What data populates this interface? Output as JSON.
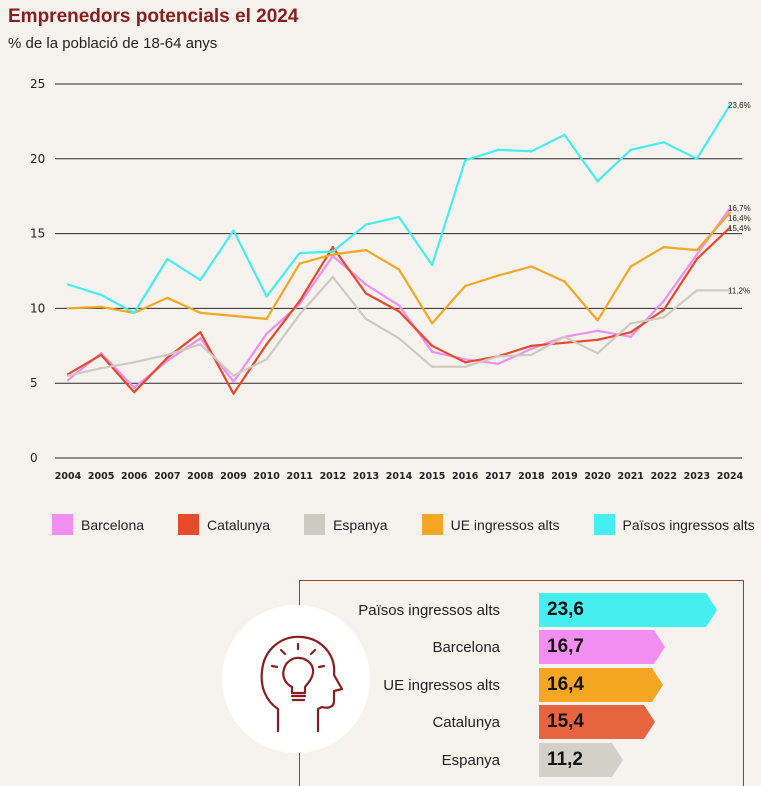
{
  "header": {
    "title": "Emprenedors potencials el 2024",
    "subtitle": "% de la població de 18-64 anys"
  },
  "chart_data": {
    "type": "line",
    "x": [
      "2004",
      "2005",
      "2006",
      "2007",
      "2008",
      "2009",
      "2010",
      "2011",
      "2012",
      "2013",
      "2014",
      "2015",
      "2016",
      "2017",
      "2018",
      "2019",
      "2020",
      "2021",
      "2022",
      "2023",
      "2024"
    ],
    "yticks": [
      0,
      5,
      10,
      15,
      20,
      25
    ],
    "ylim": [
      0,
      25
    ],
    "grid": true,
    "legend_position": "bottom",
    "series": [
      {
        "name": "Barcelona",
        "color": "#f28ef2",
        "values": [
          5.2,
          7.0,
          4.7,
          6.5,
          8.0,
          5.1,
          8.3,
          10.3,
          13.5,
          11.6,
          10.2,
          7.1,
          6.6,
          6.3,
          7.3,
          8.1,
          8.5,
          8.1,
          10.5,
          13.6,
          16.7
        ],
        "end_label": "16,7%"
      },
      {
        "name": "Catalunya",
        "color": "#e8492a",
        "values": [
          5.6,
          6.9,
          4.4,
          6.7,
          8.4,
          4.3,
          7.6,
          10.5,
          14.1,
          11.0,
          9.8,
          7.5,
          6.4,
          6.8,
          7.5,
          7.7,
          7.9,
          8.4,
          9.9,
          13.3,
          15.4
        ],
        "end_label": "15,4%"
      },
      {
        "name": "Espanya",
        "color": "#cdcac1",
        "values": [
          5.5,
          6.0,
          6.4,
          6.9,
          7.6,
          5.5,
          6.6,
          9.6,
          12.1,
          9.3,
          8.0,
          6.1,
          6.1,
          6.8,
          6.9,
          8.1,
          7.0,
          9.0,
          9.4,
          11.2,
          11.2
        ],
        "end_label": "11,2%"
      },
      {
        "name": "UE ingressos alts",
        "color": "#f5a623",
        "values": [
          10.0,
          10.1,
          9.7,
          10.7,
          9.7,
          9.5,
          9.3,
          13.0,
          13.6,
          13.9,
          12.6,
          9.0,
          11.5,
          12.2,
          12.8,
          11.8,
          9.2,
          12.8,
          14.1,
          13.9,
          16.4
        ],
        "end_label": "16,4%"
      },
      {
        "name": "Països ingressos alts",
        "color": "#45eef0",
        "values": [
          11.6,
          10.9,
          9.7,
          13.3,
          11.9,
          15.2,
          10.8,
          13.7,
          13.8,
          15.6,
          16.1,
          12.9,
          19.9,
          20.6,
          20.5,
          21.6,
          18.5,
          20.6,
          21.1,
          20.0,
          23.6
        ],
        "end_label": "23,6%"
      }
    ]
  },
  "legend": {
    "items": [
      {
        "label": "Barcelona",
        "color": "#f28ef2"
      },
      {
        "label": "Catalunya",
        "color": "#e8492a"
      },
      {
        "label": "Espanya",
        "color": "#cdcac1"
      },
      {
        "label": "UE ingressos alts",
        "color": "#f5a623"
      },
      {
        "label": "Països ingressos alts",
        "color": "#45eef0"
      }
    ]
  },
  "ranking": {
    "icon": "head-lightbulb-icon",
    "items": [
      {
        "label": "Països ingressos alts",
        "value": "23,6",
        "num": 23.6,
        "color": "#45eef0"
      },
      {
        "label": "Barcelona",
        "value": "16,7",
        "num": 16.7,
        "color": "#f28ef2"
      },
      {
        "label": "UE ingressos alts",
        "value": "16,4",
        "num": 16.4,
        "color": "#f5a623"
      },
      {
        "label": "Catalunya",
        "value": "15,4",
        "num": 15.4,
        "color": "#e86440"
      },
      {
        "label": "Espanya",
        "value": "11,2",
        "num": 11.2,
        "color": "#d3d0c8"
      }
    ]
  }
}
